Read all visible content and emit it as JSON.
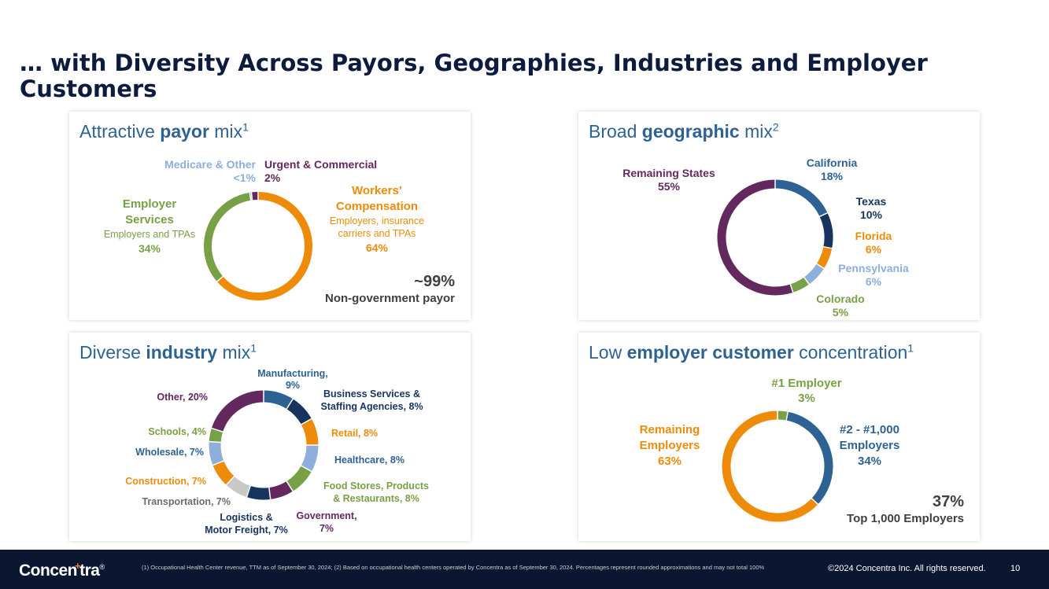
{
  "title": "… with Diversity Across Payors, Geographies, Industries and Employer Customers",
  "colors": {
    "navy": "#0d1b3e",
    "blue": "#2e6293",
    "dark_navy": "#17345e",
    "orange": "#ee8c0a",
    "green": "#78a046",
    "light_blue": "#8eaedb",
    "purple": "#63285e",
    "gray": "#c8c8c8",
    "gray_text": "#6d6d6d"
  },
  "payor": {
    "heading_pre": "Attractive ",
    "heading_bold": "payor",
    "heading_post": " mix",
    "heading_sup": "1",
    "medicare_name": "Medicare & Other",
    "medicare_pct": "<1%",
    "urgent_name": "Urgent & Commercial",
    "urgent_pct": "2%",
    "workers_name_1": "Workers’",
    "workers_name_2": "Compensation",
    "workers_sub_1": "Employers, insurance",
    "workers_sub_2": "carriers and TPAs",
    "workers_pct": "64%",
    "employer_name_1": "Employer",
    "employer_name_2": "Services",
    "employer_sub": "Employers and TPAs",
    "employer_pct": "34%",
    "stat_value": "~99%",
    "stat_label": "Non-government payor"
  },
  "geo": {
    "heading_pre": "Broad ",
    "heading_bold": "geographic",
    "heading_post": " mix",
    "heading_sup": "2",
    "remaining_name": "Remaining States",
    "remaining_pct": "55%",
    "california_name": "California",
    "california_pct": "18%",
    "texas_name": "Texas",
    "texas_pct": "10%",
    "florida_name": "Florida",
    "florida_pct": "6%",
    "penn_name": "Pennsylvania",
    "penn_pct": "6%",
    "colorado_name": "Colorado",
    "colorado_pct": "5%"
  },
  "industry": {
    "heading_pre": "Diverse ",
    "heading_bold": "industry",
    "heading_post": " mix",
    "heading_sup": "1",
    "labels": {
      "manufacturing_1": "Manufacturing,",
      "manufacturing_2": "9%",
      "business_1": "Business Services &",
      "business_2": "Staffing Agencies, 8%",
      "retail": "Retail, 8%",
      "healthcare": "Healthcare, 8%",
      "food_1": "Food Stores, Products",
      "food_2": "& Restaurants, 8%",
      "government_1": "Government,",
      "government_2": "7%",
      "logistics_1": "Logistics &",
      "logistics_2": "Motor Freight, 7%",
      "transportation": "Transportation, 7%",
      "construction": "Construction, 7%",
      "wholesale": "Wholesale, 7%",
      "schools": "Schools, 4%",
      "other": "Other, 20%"
    }
  },
  "employer": {
    "heading_pre": "Low ",
    "heading_bold": "employer customer",
    "heading_post": " concentration",
    "heading_sup": "1",
    "first_name": "#1 Employer",
    "first_pct": "3%",
    "second_name_1": "#2 - #1,000",
    "second_name_2": "Employers",
    "second_pct": "34%",
    "remaining_name_1": "Remaining",
    "remaining_name_2": "Employers",
    "remaining_pct": "63%",
    "stat_value": "37%",
    "stat_label": "Top 1,000 Employers"
  },
  "footer": {
    "logo_pre": "Concen",
    "logo_plus": "+",
    "logo_post": "tra",
    "logo_reg": "®",
    "footnote": "(1) Occupational Health Center revenue, TTM as of September 30, 2024; (2) Based on occupational health centers operated by Concentra as of September 30, 2024. Percentages represent rounded approximations and may not total 100%",
    "copyright": "©2024 Concentra Inc. All rights reserved.",
    "page_number": "10"
  },
  "chart_data": [
    {
      "type": "pie",
      "title": "Attractive payor mix",
      "categories": [
        "Workers’ Compensation",
        "Employer Services",
        "Medicare & Other",
        "Urgent & Commercial"
      ],
      "values": [
        64,
        34,
        0.5,
        2
      ],
      "colors": [
        "#ee8c0a",
        "#78a046",
        "#8eaedb",
        "#63285e"
      ]
    },
    {
      "type": "pie",
      "title": "Broad geographic mix",
      "categories": [
        "California",
        "Texas",
        "Florida",
        "Pennsylvania",
        "Colorado",
        "Remaining States"
      ],
      "values": [
        18,
        10,
        6,
        6,
        5,
        55
      ],
      "colors": [
        "#2e6293",
        "#17345e",
        "#ee8c0a",
        "#8eaedb",
        "#78a046",
        "#63285e"
      ]
    },
    {
      "type": "pie",
      "title": "Diverse industry mix",
      "categories": [
        "Manufacturing",
        "Business Services & Staffing Agencies",
        "Retail",
        "Healthcare",
        "Food Stores, Products & Restaurants",
        "Government",
        "Logistics & Motor Freight",
        "Transportation",
        "Construction",
        "Wholesale",
        "Schools",
        "Other"
      ],
      "values": [
        9,
        8,
        8,
        8,
        8,
        7,
        7,
        7,
        7,
        7,
        4,
        20
      ],
      "colors": [
        "#2e6293",
        "#17345e",
        "#ee8c0a",
        "#8eaedb",
        "#78a046",
        "#63285e",
        "#17345e",
        "#c8c8c8",
        "#ee8c0a",
        "#8eaedb",
        "#78a046",
        "#63285e"
      ]
    },
    {
      "type": "pie",
      "title": "Low employer customer concentration",
      "categories": [
        "#1 Employer",
        "#2 - #1,000 Employers",
        "Remaining Employers"
      ],
      "values": [
        3,
        34,
        63
      ],
      "colors": [
        "#78a046",
        "#2e6293",
        "#ee8c0a"
      ]
    }
  ]
}
